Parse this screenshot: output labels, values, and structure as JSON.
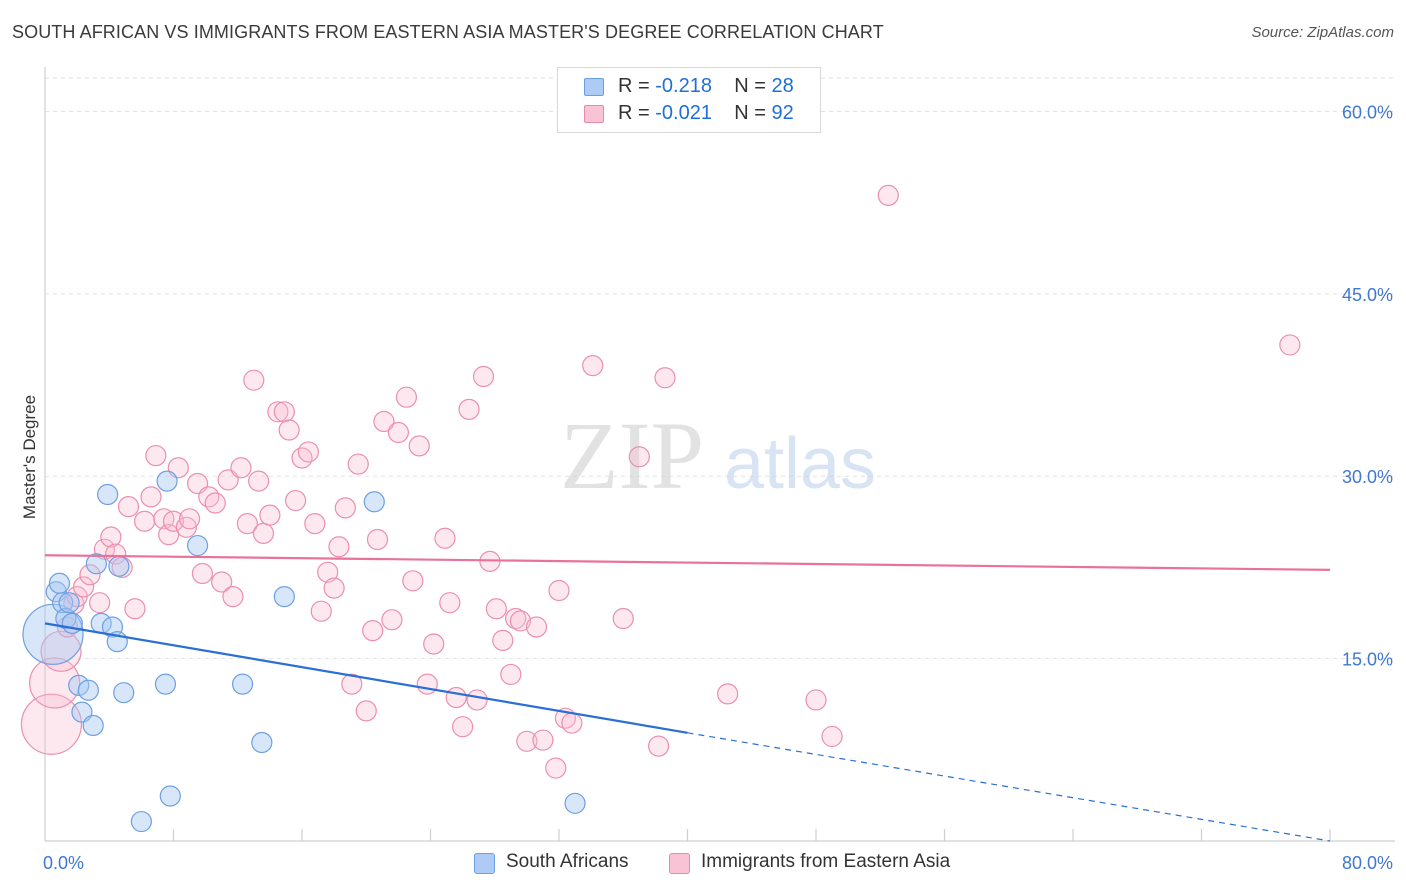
{
  "header": {
    "title": "SOUTH AFRICAN VS IMMIGRANTS FROM EASTERN ASIA MASTER'S DEGREE CORRELATION CHART",
    "source": "Source: ZipAtlas.com"
  },
  "watermark": {
    "zip": "ZIP",
    "atlas": "atlas"
  },
  "legend": {
    "rows": [
      {
        "r_label": "R =",
        "r_value": "-0.218",
        "n_label": "N =",
        "n_value": "28",
        "fill": "#aecbf5",
        "stroke": "#6a9fe0"
      },
      {
        "r_label": "R =",
        "r_value": "-0.021",
        "n_label": "N =",
        "n_value": "92",
        "fill": "#f8c3d4",
        "stroke": "#e98aa8"
      }
    ]
  },
  "bottom_legend": [
    {
      "label": "South Africans",
      "fill": "#aecbf5",
      "stroke": "#6a9fe0"
    },
    {
      "label": "Immigrants from Eastern Asia",
      "fill": "#f8c3d4",
      "stroke": "#e98aa8"
    }
  ],
  "colors": {
    "blue_dot_fill": "rgba(168,200,245,0.45)",
    "blue_dot_stroke": "#6d9fe2",
    "blue_line": "#2a6fd4",
    "pink_dot_fill": "rgba(248,190,210,0.35)",
    "pink_dot_stroke": "#eb8fac",
    "pink_line": "#e8729a",
    "axis_text": "#3f78d0",
    "grid": "#e2e2e2"
  },
  "chart_data": {
    "type": "scatter",
    "title": "SOUTH AFRICAN VS IMMIGRANTS FROM EASTERN ASIA MASTER'S DEGREE CORRELATION CHART",
    "xlabel": "",
    "ylabel": "Master's Degree",
    "xlim": [
      0,
      80
    ],
    "ylim": [
      0,
      63
    ],
    "x_ticks": [
      0,
      80
    ],
    "x_tick_labels": [
      "0.0%",
      "80.0%"
    ],
    "y_ticks": [
      15,
      30,
      45,
      60
    ],
    "y_tick_labels": [
      "15.0%",
      "30.0%",
      "45.0%",
      "60.0%"
    ],
    "grid": true,
    "legend_position": "top-center",
    "series": [
      {
        "name": "South Africans",
        "r": -0.218,
        "n": 28,
        "trend": {
          "x0": 0,
          "y0": 17.9,
          "x1": 40,
          "y1": 8.9,
          "dashed_to_x": 80,
          "dashed_to_y": 0
        },
        "points": [
          [
            0.5,
            17.0,
            3
          ],
          [
            0.7,
            20.5,
            1
          ],
          [
            0.9,
            21.2,
            1
          ],
          [
            1.1,
            19.6,
            1
          ],
          [
            1.3,
            18.3,
            1
          ],
          [
            1.5,
            19.6,
            1
          ],
          [
            1.7,
            17.9,
            1
          ],
          [
            2.1,
            12.8,
            1
          ],
          [
            2.3,
            10.6,
            1
          ],
          [
            2.7,
            12.4,
            1
          ],
          [
            3.0,
            9.5,
            1
          ],
          [
            3.2,
            22.8,
            1
          ],
          [
            3.5,
            17.9,
            1
          ],
          [
            3.9,
            28.5,
            1
          ],
          [
            4.2,
            17.6,
            1
          ],
          [
            4.5,
            16.4,
            1
          ],
          [
            4.6,
            22.6,
            1
          ],
          [
            4.9,
            12.2,
            1
          ],
          [
            6.0,
            1.6,
            1
          ],
          [
            7.5,
            12.9,
            1
          ],
          [
            7.6,
            29.6,
            1
          ],
          [
            7.8,
            3.7,
            1
          ],
          [
            9.5,
            24.3,
            1
          ],
          [
            12.3,
            12.9,
            1
          ],
          [
            13.5,
            8.1,
            1
          ],
          [
            14.9,
            20.1,
            1
          ],
          [
            20.5,
            27.9,
            1
          ],
          [
            33.0,
            3.1,
            1
          ]
        ]
      },
      {
        "name": "Immigrants from Eastern Asia",
        "r": -0.021,
        "n": 92,
        "trend": {
          "x0": 0,
          "y0": 23.5,
          "x1": 80,
          "y1": 22.3
        },
        "points": [
          [
            0.4,
            9.6,
            3
          ],
          [
            0.6,
            13.0,
            2.5
          ],
          [
            1.0,
            15.6,
            2
          ],
          [
            1.4,
            17.6,
            1
          ],
          [
            1.8,
            19.5,
            1
          ],
          [
            2.0,
            20.1,
            1
          ],
          [
            2.4,
            20.9,
            1
          ],
          [
            2.8,
            21.9,
            1
          ],
          [
            3.4,
            19.6,
            1
          ],
          [
            3.7,
            24.0,
            1
          ],
          [
            4.1,
            25.0,
            1
          ],
          [
            4.4,
            23.6,
            1
          ],
          [
            4.8,
            22.5,
            1
          ],
          [
            5.2,
            27.5,
            1
          ],
          [
            5.6,
            19.1,
            1
          ],
          [
            6.2,
            26.3,
            1
          ],
          [
            6.6,
            28.3,
            1
          ],
          [
            6.9,
            31.7,
            1
          ],
          [
            7.4,
            26.5,
            1
          ],
          [
            7.7,
            25.2,
            1
          ],
          [
            8.0,
            26.3,
            1
          ],
          [
            8.3,
            30.7,
            1
          ],
          [
            8.8,
            25.8,
            1
          ],
          [
            9.0,
            26.5,
            1
          ],
          [
            9.5,
            29.4,
            1
          ],
          [
            9.8,
            22.0,
            1
          ],
          [
            10.2,
            28.3,
            1
          ],
          [
            10.6,
            27.8,
            1
          ],
          [
            11.0,
            21.3,
            1
          ],
          [
            11.4,
            29.7,
            1
          ],
          [
            11.7,
            20.1,
            1
          ],
          [
            12.2,
            30.7,
            1
          ],
          [
            12.6,
            26.1,
            1
          ],
          [
            13.0,
            37.9,
            1
          ],
          [
            13.3,
            29.6,
            1
          ],
          [
            13.6,
            25.3,
            1
          ],
          [
            14.0,
            26.8,
            1
          ],
          [
            14.5,
            35.3,
            1
          ],
          [
            14.9,
            35.3,
            1
          ],
          [
            15.2,
            33.8,
            1
          ],
          [
            15.6,
            28.0,
            1
          ],
          [
            16.0,
            31.5,
            1
          ],
          [
            16.4,
            32.0,
            1
          ],
          [
            16.8,
            26.1,
            1
          ],
          [
            17.2,
            18.9,
            1
          ],
          [
            17.6,
            22.1,
            1
          ],
          [
            18.0,
            20.8,
            1
          ],
          [
            18.3,
            24.2,
            1
          ],
          [
            18.7,
            27.4,
            1
          ],
          [
            19.1,
            12.9,
            1
          ],
          [
            19.5,
            31.0,
            1
          ],
          [
            20.0,
            10.7,
            1
          ],
          [
            20.4,
            17.3,
            1
          ],
          [
            20.7,
            24.8,
            1
          ],
          [
            21.1,
            34.5,
            1
          ],
          [
            21.6,
            18.2,
            1
          ],
          [
            22.0,
            33.6,
            1
          ],
          [
            22.5,
            36.5,
            1
          ],
          [
            22.9,
            21.4,
            1
          ],
          [
            23.3,
            32.5,
            1
          ],
          [
            23.8,
            12.9,
            1
          ],
          [
            24.2,
            16.2,
            1
          ],
          [
            24.9,
            24.9,
            1
          ],
          [
            25.2,
            19.6,
            1
          ],
          [
            25.6,
            11.8,
            1
          ],
          [
            26.0,
            9.4,
            1
          ],
          [
            26.4,
            35.5,
            1
          ],
          [
            26.9,
            11.6,
            1
          ],
          [
            27.3,
            38.2,
            1
          ],
          [
            27.7,
            23.0,
            1
          ],
          [
            28.1,
            19.1,
            1
          ],
          [
            28.5,
            16.5,
            1
          ],
          [
            29.0,
            13.7,
            1
          ],
          [
            29.3,
            18.3,
            1
          ],
          [
            29.6,
            18.1,
            1
          ],
          [
            30.0,
            8.2,
            1
          ],
          [
            30.6,
            17.6,
            1
          ],
          [
            31.0,
            8.3,
            1
          ],
          [
            31.8,
            6.0,
            1
          ],
          [
            32.0,
            20.6,
            1
          ],
          [
            32.4,
            10.1,
            1
          ],
          [
            32.8,
            9.7,
            1
          ],
          [
            34.1,
            39.1,
            1
          ],
          [
            36.0,
            18.3,
            1
          ],
          [
            37.0,
            31.6,
            1
          ],
          [
            38.2,
            7.8,
            1
          ],
          [
            38.6,
            38.1,
            1
          ],
          [
            42.5,
            12.1,
            1
          ],
          [
            48.0,
            11.6,
            1
          ],
          [
            49.0,
            8.6,
            1
          ],
          [
            52.5,
            53.1,
            1
          ],
          [
            77.5,
            40.8,
            1
          ]
        ]
      }
    ]
  }
}
